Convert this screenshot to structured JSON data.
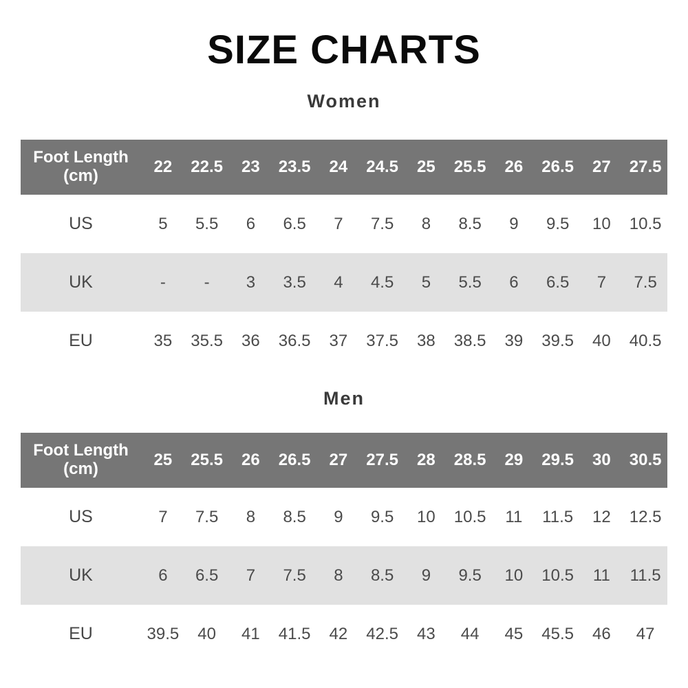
{
  "page": {
    "title": "SIZE CHARTS"
  },
  "colors": {
    "page_bg": "#ffffff",
    "header_bg": "#767676",
    "header_text": "#ffffff",
    "stripe_bg": "#e1e1e1",
    "body_text": "#4b4b4b",
    "title_color": "#0a0a0a",
    "section_color": "#3a3a3a"
  },
  "chart_data": [
    {
      "type": "table",
      "title": "Women",
      "corner": {
        "line1": "Foot Length",
        "line2": "(cm)"
      },
      "columns": [
        "22",
        "22.5",
        "23",
        "23.5",
        "24",
        "24.5",
        "25",
        "25.5",
        "26",
        "26.5",
        "27",
        "27.5"
      ],
      "rows": [
        {
          "label": "US",
          "stripe": false,
          "values": [
            "5",
            "5.5",
            "6",
            "6.5",
            "7",
            "7.5",
            "8",
            "8.5",
            "9",
            "9.5",
            "10",
            "10.5"
          ]
        },
        {
          "label": "UK",
          "stripe": true,
          "values": [
            "-",
            "-",
            "3",
            "3.5",
            "4",
            "4.5",
            "5",
            "5.5",
            "6",
            "6.5",
            "7",
            "7.5"
          ]
        },
        {
          "label": "EU",
          "stripe": false,
          "values": [
            "35",
            "35.5",
            "36",
            "36.5",
            "37",
            "37.5",
            "38",
            "38.5",
            "39",
            "39.5",
            "40",
            "40.5"
          ]
        }
      ]
    },
    {
      "type": "table",
      "title": "Men",
      "corner": {
        "line1": "Foot Length",
        "line2": "(cm)"
      },
      "columns": [
        "25",
        "25.5",
        "26",
        "26.5",
        "27",
        "27.5",
        "28",
        "28.5",
        "29",
        "29.5",
        "30",
        "30.5"
      ],
      "rows": [
        {
          "label": "US",
          "stripe": false,
          "values": [
            "7",
            "7.5",
            "8",
            "8.5",
            "9",
            "9.5",
            "10",
            "10.5",
            "11",
            "11.5",
            "12",
            "12.5"
          ]
        },
        {
          "label": "UK",
          "stripe": true,
          "values": [
            "6",
            "6.5",
            "7",
            "7.5",
            "8",
            "8.5",
            "9",
            "9.5",
            "10",
            "10.5",
            "11",
            "11.5"
          ]
        },
        {
          "label": "EU",
          "stripe": false,
          "values": [
            "39.5",
            "40",
            "41",
            "41.5",
            "42",
            "42.5",
            "43",
            "44",
            "45",
            "45.5",
            "46",
            "47"
          ]
        }
      ]
    }
  ]
}
